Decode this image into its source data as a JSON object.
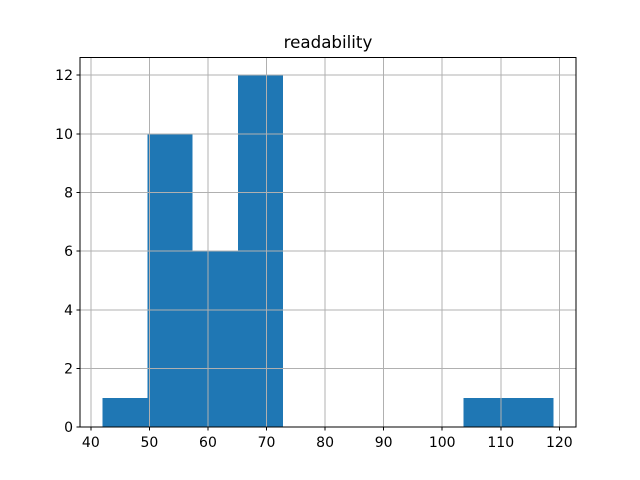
{
  "chart_data": {
    "type": "bar",
    "subtype": "histogram",
    "title": "readability",
    "xlabel": "",
    "ylabel": "",
    "bin_edges": [
      42.0,
      49.7,
      57.4,
      65.1,
      72.8,
      80.5,
      88.2,
      95.9,
      103.6,
      111.3,
      119.0
    ],
    "counts": [
      1,
      10,
      6,
      12,
      0,
      0,
      0,
      0,
      1,
      1
    ],
    "xticks": [
      40,
      50,
      60,
      70,
      80,
      90,
      100,
      110,
      120
    ],
    "yticks": [
      0,
      2,
      4,
      6,
      8,
      10,
      12
    ],
    "xlim": [
      38.15,
      122.85
    ],
    "ylim": [
      0,
      12.6
    ],
    "grid": true,
    "legend": null,
    "bar_color": "#1f77b4",
    "grid_color": "#b0b0b0",
    "spine_color": "#000000",
    "background_color": "#ffffff",
    "tick_label_color": "#000000"
  }
}
